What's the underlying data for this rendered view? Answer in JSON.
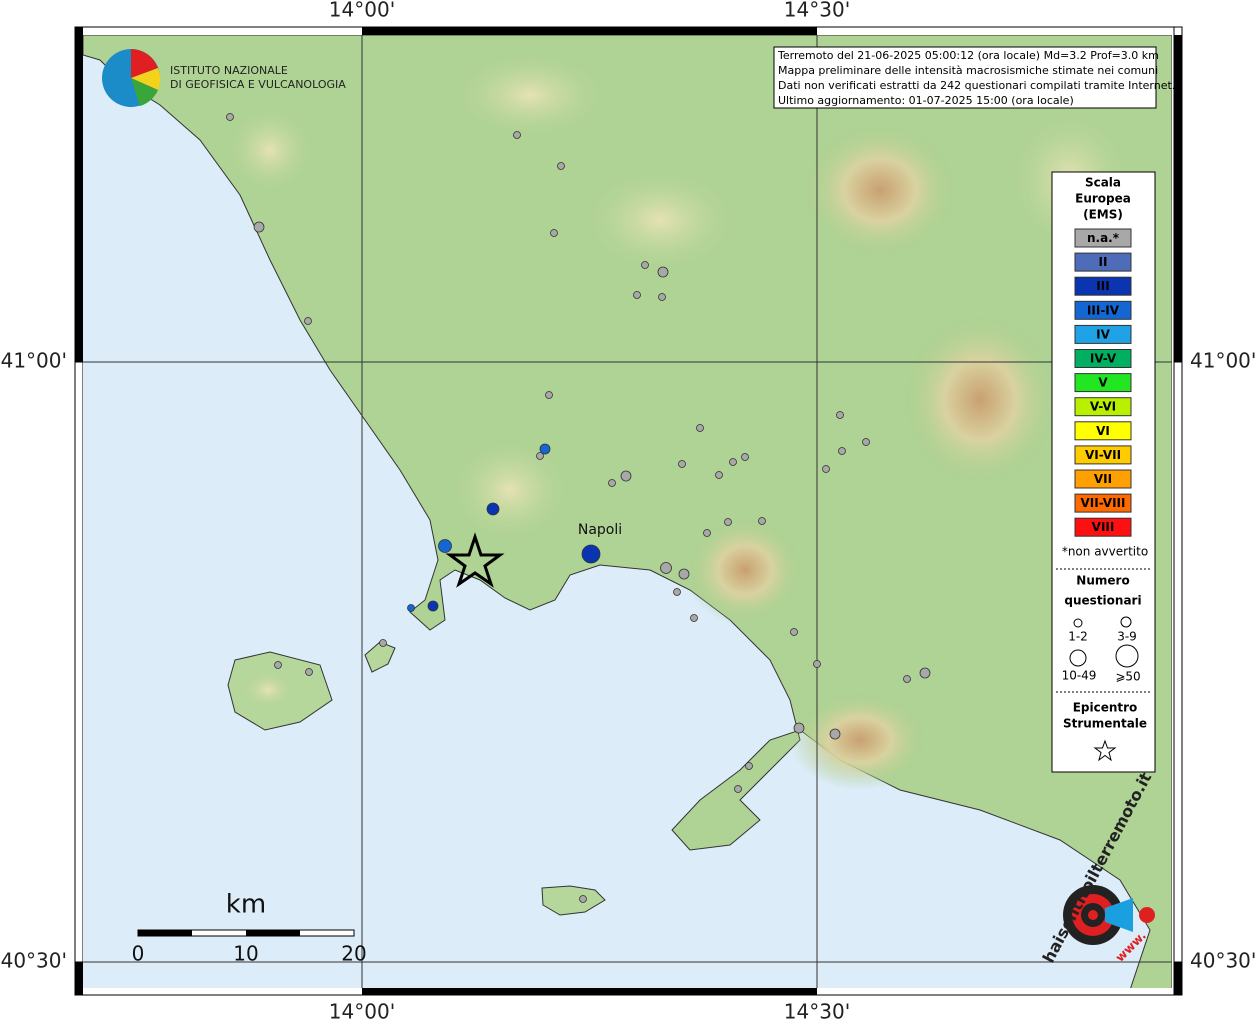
{
  "map": {
    "grid_labels": {
      "lon_1": "14°00'",
      "lon_2": "14°30'",
      "lat_1": "41°00'",
      "lat_2": "40°30'"
    },
    "logo": {
      "line_1": "ISTITUTO NAZIONALE",
      "line_2": "DI GEOFISICA E VULCANOLOGIA"
    },
    "info": [
      "Terremoto del 21-06-2025 05:00:12 (ora locale) Md=3.2 Prof=3.0 km",
      "Mappa preliminare delle intensità macrosismiche stimate nei comuni",
      "Dati non verificati estratti da 242 questionari compilati tramite Internet.",
      "Ultimo aggiornamento: 01-07-2025 15:00 (ora locale)"
    ],
    "place": "Napoli",
    "legend": {
      "title": [
        "Scala",
        "Europea",
        "(EMS)"
      ],
      "items": [
        {
          "label": "n.a.*",
          "color": "#a8a8a8",
          "text_color": "#ffffff"
        },
        {
          "label": "II",
          "color": "#4f6cb8",
          "text_color": "#ffffff"
        },
        {
          "label": "III",
          "color": "#0a34b0",
          "text_color": "#ffffff"
        },
        {
          "label": "III-IV",
          "color": "#1466d2",
          "text_color": "#ffffff"
        },
        {
          "label": "IV",
          "color": "#1fa3e6",
          "text_color": "#ffffff"
        },
        {
          "label": "IV-V",
          "color": "#00b060",
          "text_color": "#000000"
        },
        {
          "label": "V",
          "color": "#22e622",
          "text_color": "#000000"
        },
        {
          "label": "V-VI",
          "color": "#b8f000",
          "text_color": "#000000"
        },
        {
          "label": "VI",
          "color": "#ffff00",
          "text_color": "#000000"
        },
        {
          "label": "VI-VII",
          "color": "#ffcc00",
          "text_color": "#000000"
        },
        {
          "label": "VII",
          "color": "#ffa000",
          "text_color": "#000000"
        },
        {
          "label": "VII-VIII",
          "color": "#ff6a00",
          "text_color": "#000000"
        },
        {
          "label": "VIII",
          "color": "#ff1010",
          "text_color": "#000000"
        }
      ],
      "note": "*non avvertito",
      "size_title": [
        "Numero",
        "questionari"
      ],
      "sizes": [
        "1-2",
        "3-9",
        "10-49",
        "⩾50"
      ],
      "epicenter": [
        "Epicentro",
        "Strumentale"
      ]
    },
    "scale_bar": {
      "unit": "km",
      "ticks": [
        "0",
        "10",
        "20"
      ]
    },
    "badge": {
      "site": "haisentitoilterremoto.it",
      "prefix": "www."
    }
  }
}
